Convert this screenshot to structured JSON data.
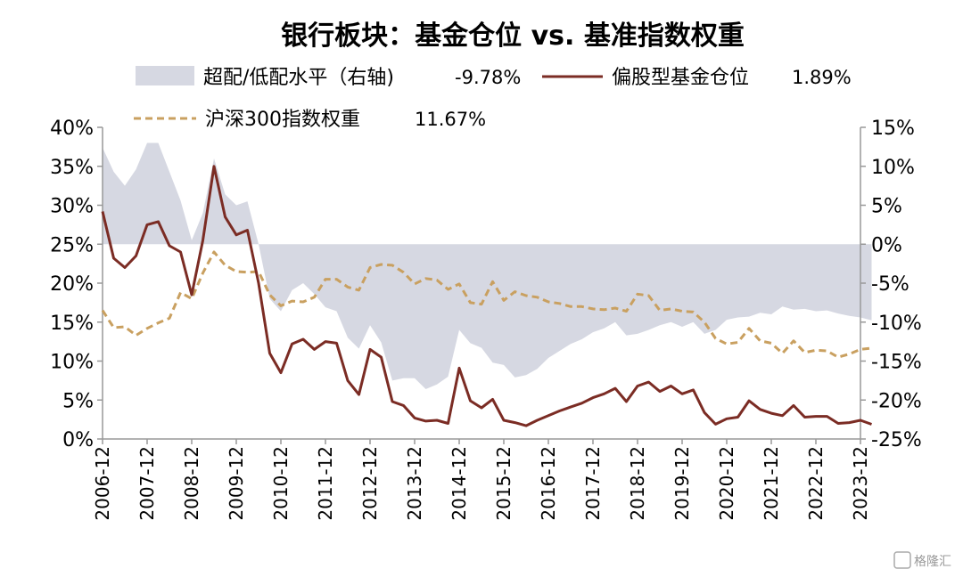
{
  "chart_data": {
    "type": "line",
    "title": "银行板块：基金仓位 vs. 基准指数权重",
    "legend": [
      {
        "key": "overweight",
        "label": "超配/低配水平（右轴)",
        "value": "-9.78%",
        "color": "#d6d8e2",
        "style": "area"
      },
      {
        "key": "fund",
        "label": "偏股型基金仓位",
        "value": "1.89%",
        "color": "#7b2c24",
        "style": "solid"
      },
      {
        "key": "index",
        "label": "沪深300指数权重",
        "value": "11.67%",
        "color": "#c9a060",
        "style": "dashed"
      }
    ],
    "x_ticks": [
      "2006-12",
      "2007-12",
      "2008-12",
      "2009-12",
      "2010-12",
      "2011-12",
      "2012-12",
      "2013-12",
      "2014-12",
      "2015-12",
      "2016-12",
      "2017-12",
      "2018-12",
      "2019-12",
      "2020-12",
      "2021-12",
      "2022-12",
      "2023-12"
    ],
    "x_range": [
      2006.0,
      2023.0
    ],
    "y_left": {
      "min": 0,
      "max": 40,
      "ticks": [
        "0%",
        "5%",
        "10%",
        "15%",
        "20%",
        "25%",
        "30%",
        "35%",
        "40%"
      ]
    },
    "y_right": {
      "min": -25,
      "max": 15,
      "ticks": [
        "-25%",
        "-20%",
        "-15%",
        "-10%",
        "-5%",
        "0%",
        "5%",
        "10%",
        "15%"
      ]
    },
    "series": [
      {
        "name": "偏股型基金仓位",
        "axis": "left",
        "points": [
          [
            2006.0,
            29.2
          ],
          [
            2006.25,
            23.2
          ],
          [
            2006.5,
            22.0
          ],
          [
            2006.75,
            23.5
          ],
          [
            2007.0,
            27.5
          ],
          [
            2007.25,
            27.9
          ],
          [
            2007.5,
            24.8
          ],
          [
            2007.75,
            24.0
          ],
          [
            2008.0,
            18.5
          ],
          [
            2008.25,
            25.5
          ],
          [
            2008.5,
            35.0
          ],
          [
            2008.75,
            28.5
          ],
          [
            2009.0,
            26.2
          ],
          [
            2009.25,
            26.8
          ],
          [
            2009.5,
            20.0
          ],
          [
            2009.75,
            11.0
          ],
          [
            2010.0,
            8.5
          ],
          [
            2010.25,
            12.2
          ],
          [
            2010.5,
            12.8
          ],
          [
            2010.75,
            11.5
          ],
          [
            2011.0,
            12.5
          ],
          [
            2011.25,
            12.3
          ],
          [
            2011.5,
            7.5
          ],
          [
            2011.75,
            5.7
          ],
          [
            2012.0,
            11.5
          ],
          [
            2012.25,
            10.5
          ],
          [
            2012.5,
            4.8
          ],
          [
            2012.75,
            4.3
          ],
          [
            2013.0,
            2.7
          ],
          [
            2013.25,
            2.3
          ],
          [
            2013.5,
            2.4
          ],
          [
            2013.75,
            2.0
          ],
          [
            2014.0,
            9.1
          ],
          [
            2014.25,
            4.9
          ],
          [
            2014.5,
            4.0
          ],
          [
            2014.75,
            5.1
          ],
          [
            2015.0,
            2.4
          ],
          [
            2015.25,
            2.1
          ],
          [
            2015.5,
            1.7
          ],
          [
            2015.75,
            2.4
          ],
          [
            2016.0,
            3.0
          ],
          [
            2016.25,
            3.6
          ],
          [
            2016.5,
            4.1
          ],
          [
            2016.75,
            4.6
          ],
          [
            2017.0,
            5.3
          ],
          [
            2017.25,
            5.8
          ],
          [
            2017.5,
            6.5
          ],
          [
            2017.75,
            4.8
          ],
          [
            2018.0,
            6.8
          ],
          [
            2018.25,
            7.3
          ],
          [
            2018.5,
            6.1
          ],
          [
            2018.75,
            6.8
          ],
          [
            2019.0,
            5.8
          ],
          [
            2019.25,
            6.3
          ],
          [
            2019.5,
            3.4
          ],
          [
            2019.75,
            1.9
          ],
          [
            2020.0,
            2.6
          ],
          [
            2020.25,
            2.8
          ],
          [
            2020.5,
            4.9
          ],
          [
            2020.75,
            3.8
          ],
          [
            2021.0,
            3.3
          ],
          [
            2021.25,
            3.0
          ],
          [
            2021.5,
            4.3
          ],
          [
            2021.75,
            2.8
          ],
          [
            2022.0,
            2.9
          ],
          [
            2022.25,
            2.9
          ],
          [
            2022.5,
            2.0
          ],
          [
            2022.75,
            2.1
          ],
          [
            2023.0,
            2.4
          ],
          [
            2023.25,
            1.89
          ]
        ]
      },
      {
        "name": "沪深300指数权重",
        "axis": "left",
        "points": [
          [
            2006.0,
            16.5
          ],
          [
            2006.25,
            14.3
          ],
          [
            2006.5,
            14.4
          ],
          [
            2006.75,
            13.3
          ],
          [
            2007.0,
            14.2
          ],
          [
            2007.25,
            14.9
          ],
          [
            2007.5,
            15.5
          ],
          [
            2007.75,
            18.8
          ],
          [
            2008.0,
            18.0
          ],
          [
            2008.25,
            21.3
          ],
          [
            2008.5,
            24.0
          ],
          [
            2008.75,
            22.3
          ],
          [
            2009.0,
            21.5
          ],
          [
            2009.25,
            21.4
          ],
          [
            2009.5,
            21.5
          ],
          [
            2009.75,
            18.5
          ],
          [
            2010.0,
            17.1
          ],
          [
            2010.25,
            17.7
          ],
          [
            2010.5,
            17.6
          ],
          [
            2010.75,
            18.2
          ],
          [
            2011.0,
            20.5
          ],
          [
            2011.25,
            20.5
          ],
          [
            2011.5,
            19.5
          ],
          [
            2011.75,
            19.1
          ],
          [
            2012.0,
            22.0
          ],
          [
            2012.25,
            22.4
          ],
          [
            2012.5,
            22.3
          ],
          [
            2012.75,
            21.4
          ],
          [
            2013.0,
            19.9
          ],
          [
            2013.25,
            20.6
          ],
          [
            2013.5,
            20.4
          ],
          [
            2013.75,
            19.2
          ],
          [
            2014.0,
            19.9
          ],
          [
            2014.25,
            17.5
          ],
          [
            2014.5,
            17.3
          ],
          [
            2014.75,
            20.2
          ],
          [
            2015.0,
            17.8
          ],
          [
            2015.25,
            18.9
          ],
          [
            2015.5,
            18.4
          ],
          [
            2015.75,
            18.2
          ],
          [
            2016.0,
            17.6
          ],
          [
            2016.25,
            17.4
          ],
          [
            2016.5,
            17.0
          ],
          [
            2016.75,
            17.0
          ],
          [
            2017.0,
            16.7
          ],
          [
            2017.25,
            16.6
          ],
          [
            2017.5,
            16.8
          ],
          [
            2017.75,
            16.4
          ],
          [
            2018.0,
            18.6
          ],
          [
            2018.25,
            18.4
          ],
          [
            2018.5,
            16.5
          ],
          [
            2018.75,
            16.7
          ],
          [
            2019.0,
            16.4
          ],
          [
            2019.25,
            16.3
          ],
          [
            2019.5,
            15.0
          ],
          [
            2019.75,
            12.9
          ],
          [
            2020.0,
            12.2
          ],
          [
            2020.25,
            12.4
          ],
          [
            2020.5,
            14.2
          ],
          [
            2020.75,
            12.6
          ],
          [
            2021.0,
            12.3
          ],
          [
            2021.25,
            11.0
          ],
          [
            2021.5,
            12.6
          ],
          [
            2021.75,
            11.1
          ],
          [
            2022.0,
            11.4
          ],
          [
            2022.25,
            11.3
          ],
          [
            2022.5,
            10.5
          ],
          [
            2022.75,
            10.9
          ],
          [
            2023.0,
            11.5
          ],
          [
            2023.25,
            11.67
          ]
        ]
      },
      {
        "name": "超配/低配水平（右轴)",
        "axis": "right",
        "type": "area",
        "points": [
          [
            2006.0,
            12.4
          ],
          [
            2006.25,
            9.3
          ],
          [
            2006.5,
            7.5
          ],
          [
            2006.75,
            9.6
          ],
          [
            2007.0,
            13.0
          ],
          [
            2007.25,
            13.0
          ],
          [
            2007.5,
            9.3
          ],
          [
            2007.75,
            5.6
          ],
          [
            2008.0,
            0.5
          ],
          [
            2008.25,
            4.0
          ],
          [
            2008.5,
            11.0
          ],
          [
            2008.75,
            6.4
          ],
          [
            2009.0,
            5.0
          ],
          [
            2009.25,
            5.5
          ],
          [
            2009.5,
            0.0
          ],
          [
            2009.75,
            -7.0
          ],
          [
            2010.0,
            -8.6
          ],
          [
            2010.25,
            -5.9
          ],
          [
            2010.5,
            -5.0
          ],
          [
            2010.75,
            -6.4
          ],
          [
            2011.0,
            -8.1
          ],
          [
            2011.25,
            -8.6
          ],
          [
            2011.5,
            -12.0
          ],
          [
            2011.75,
            -13.4
          ],
          [
            2012.0,
            -10.4
          ],
          [
            2012.25,
            -12.6
          ],
          [
            2012.5,
            -17.5
          ],
          [
            2012.75,
            -17.2
          ],
          [
            2013.0,
            -17.2
          ],
          [
            2013.25,
            -18.6
          ],
          [
            2013.5,
            -18.0
          ],
          [
            2013.75,
            -17.0
          ],
          [
            2014.0,
            -11.0
          ],
          [
            2014.25,
            -12.7
          ],
          [
            2014.5,
            -13.3
          ],
          [
            2014.75,
            -15.2
          ],
          [
            2015.0,
            -15.5
          ],
          [
            2015.25,
            -17.1
          ],
          [
            2015.5,
            -16.8
          ],
          [
            2015.75,
            -16.0
          ],
          [
            2016.0,
            -14.6
          ],
          [
            2016.25,
            -13.7
          ],
          [
            2016.5,
            -12.8
          ],
          [
            2016.75,
            -12.2
          ],
          [
            2017.0,
            -11.3
          ],
          [
            2017.25,
            -10.8
          ],
          [
            2017.5,
            -10.0
          ],
          [
            2017.75,
            -11.7
          ],
          [
            2018.0,
            -11.5
          ],
          [
            2018.25,
            -11.0
          ],
          [
            2018.5,
            -10.4
          ],
          [
            2018.75,
            -10.0
          ],
          [
            2019.0,
            -10.6
          ],
          [
            2019.25,
            -10.0
          ],
          [
            2019.5,
            -11.5
          ],
          [
            2019.75,
            -11.0
          ],
          [
            2020.0,
            -9.7
          ],
          [
            2020.25,
            -9.4
          ],
          [
            2020.5,
            -9.3
          ],
          [
            2020.75,
            -8.8
          ],
          [
            2021.0,
            -9.0
          ],
          [
            2021.25,
            -8.0
          ],
          [
            2021.5,
            -8.4
          ],
          [
            2021.75,
            -8.3
          ],
          [
            2022.0,
            -8.6
          ],
          [
            2022.25,
            -8.5
          ],
          [
            2022.5,
            -8.9
          ],
          [
            2022.75,
            -9.2
          ],
          [
            2023.0,
            -9.4
          ],
          [
            2023.25,
            -9.78
          ]
        ]
      }
    ],
    "watermark": "格隆汇"
  }
}
